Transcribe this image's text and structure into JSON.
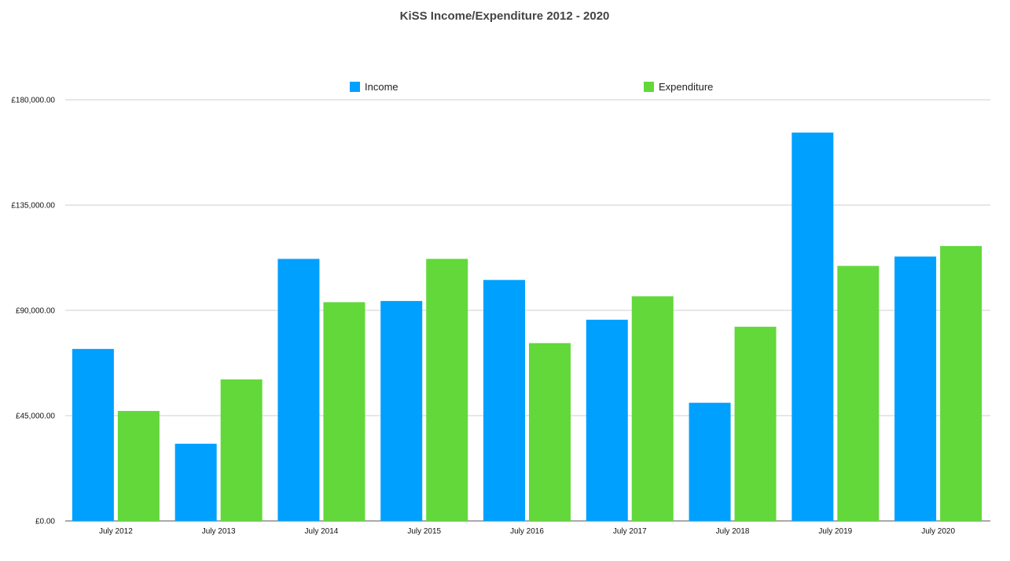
{
  "chart_data": {
    "type": "bar",
    "title": "KiSS Income/Expenditure 2012 - 2020",
    "xlabel": "",
    "ylabel": "",
    "categories": [
      "July 2012",
      "July 2013",
      "July 2014",
      "July 2015",
      "July 2016",
      "July 2017",
      "July 2018",
      "July 2019",
      "July 2020"
    ],
    "series": [
      {
        "name": "Income",
        "color": "#00a0ff",
        "values": [
          73500,
          33000,
          112000,
          94000,
          103000,
          86000,
          50500,
          166000,
          113000
        ]
      },
      {
        "name": "Expenditure",
        "color": "#62d83a",
        "values": [
          47000,
          60500,
          93500,
          112000,
          76000,
          96000,
          83000,
          109000,
          117500
        ]
      }
    ],
    "ylim": [
      0,
      180000
    ],
    "yticks": [
      0,
      45000,
      90000,
      135000,
      180000
    ],
    "ytick_labels": [
      "£0.00",
      "£45,000.00",
      "£90,000.00",
      "£135,000.00",
      "£180,000.00"
    ],
    "grid": true,
    "legend_position": "top-center"
  }
}
